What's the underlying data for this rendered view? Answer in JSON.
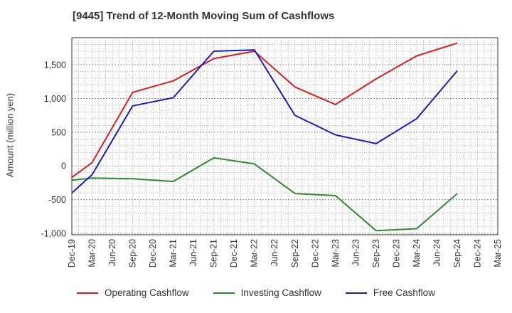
{
  "chart_data": {
    "type": "line",
    "title": "[9445]  Trend of 12-Month Moving Sum of Cashflows",
    "ylabel": "Amount (million yen)",
    "xlabel": "",
    "x": [
      "Dec-19",
      "Mar-20",
      "Jun-20",
      "Sep-20",
      "Dec-20",
      "Mar-21",
      "Jun-21",
      "Sep-21",
      "Dec-21",
      "Mar-22",
      "Jun-22",
      "Sep-22",
      "Dec-22",
      "Mar-23",
      "Jun-23",
      "Sep-23",
      "Dec-23",
      "Mar-24",
      "Jun-24",
      "Sep-24",
      "Dec-24",
      "Mar-25"
    ],
    "yticks": [
      -1000,
      -500,
      0,
      500,
      1000,
      1500
    ],
    "ytick_labels": [
      "-1,000",
      "-500",
      "0",
      "500",
      "1,000",
      "1,500"
    ],
    "ylim": [
      -1020,
      1900
    ],
    "grid": true,
    "legend_position": "bottom",
    "series": [
      {
        "name": "Operating Cashflow",
        "color": "#e31a1c",
        "values": [
          -170,
          50,
          null,
          1090,
          null,
          1260,
          null,
          1590,
          null,
          1700,
          null,
          1170,
          null,
          910,
          null,
          1290,
          null,
          1630,
          null,
          1820,
          null,
          null
        ]
      },
      {
        "name": "Investing Cashflow",
        "color": "#2e8b2e",
        "values": [
          -210,
          -180,
          null,
          -190,
          null,
          -230,
          null,
          120,
          null,
          30,
          null,
          -410,
          null,
          -440,
          null,
          -960,
          null,
          -930,
          null,
          -410,
          null,
          null
        ]
      },
      {
        "name": "Free Cashflow",
        "color": "#1a1acc",
        "values": [
          -400,
          -130,
          null,
          890,
          null,
          1010,
          null,
          1700,
          null,
          1720,
          null,
          750,
          null,
          460,
          null,
          330,
          null,
          700,
          null,
          1410,
          null,
          null
        ]
      }
    ]
  }
}
